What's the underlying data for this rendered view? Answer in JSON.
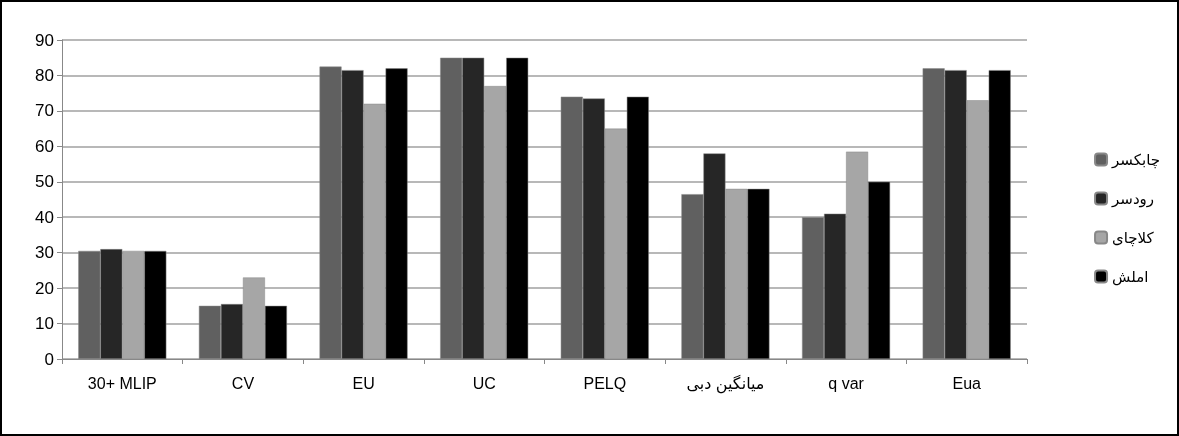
{
  "chart_data": {
    "type": "bar",
    "categories": [
      "30+ MLIP",
      "CV",
      "EU",
      "UC",
      "PELQ",
      "میانگین دبی",
      "q var",
      "Eua"
    ],
    "series": [
      {
        "name": "چابکسر",
        "color": "#606060",
        "values": [
          30.5,
          15,
          82.5,
          85,
          74,
          46.5,
          40,
          82
        ]
      },
      {
        "name": "رودسر",
        "color": "#262626",
        "values": [
          31,
          15.5,
          81.5,
          85,
          73.5,
          58,
          41,
          81.5
        ]
      },
      {
        "name": "کلاچای",
        "color": "#a6a6a6",
        "values": [
          30.5,
          23,
          72,
          77,
          65,
          48,
          58.5,
          73
        ]
      },
      {
        "name": "املش",
        "color": "#000000",
        "values": [
          30.5,
          15,
          82,
          85,
          74,
          48,
          50,
          81.5
        ]
      }
    ],
    "ylim": [
      0,
      90
    ],
    "yticks": [
      0,
      10,
      20,
      30,
      40,
      50,
      60,
      70,
      80,
      90
    ],
    "grid": "y",
    "legend": "right"
  }
}
